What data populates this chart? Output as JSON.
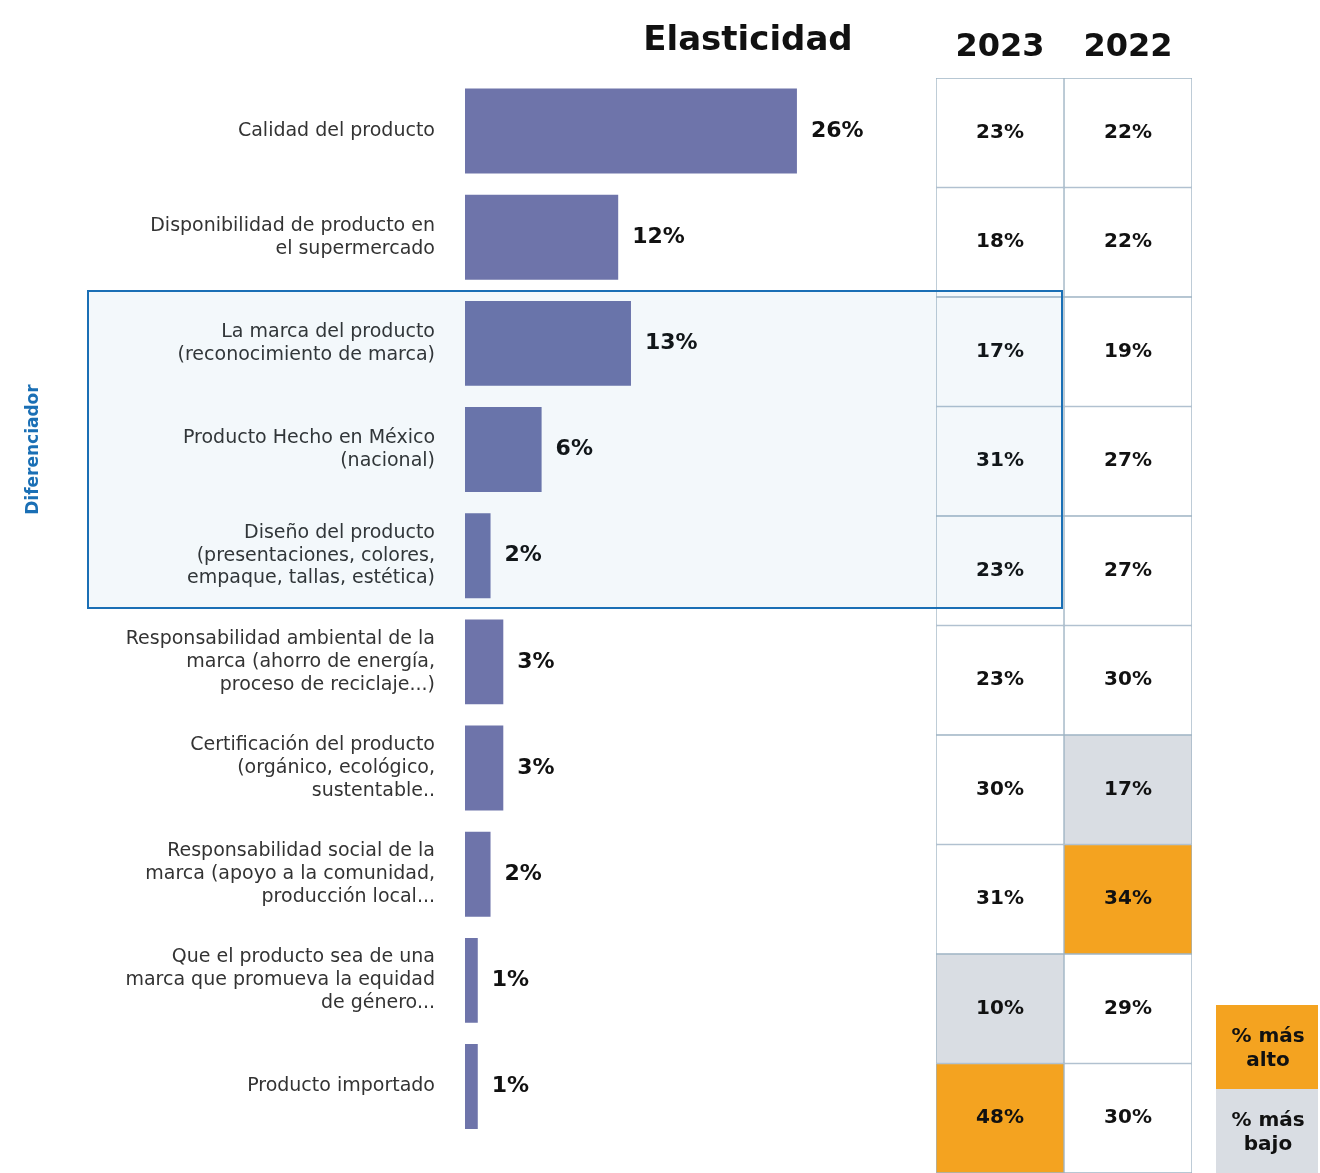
{
  "chart_data": [
    {
      "type": "bar",
      "orientation": "horizontal",
      "title": "Elasticidad",
      "categories": [
        "Calidad del producto",
        "Disponibilidad de producto en el supermercado",
        "La marca del producto (reconocimiento de marca)",
        "Producto Hecho en México (nacional)",
        "Diseño del producto (presentaciones, colores, empaque, tallas, estética)",
        "Responsabilidad ambiental de la marca (ahorro de energía, proceso de reciclaje...)",
        "Certificación del producto (orgánico, ecológico, sustentable..",
        "Responsabilidad social de la marca (apoyo a la comunidad, producción local...",
        "Que el producto sea de una marca que promueva la equidad de género...",
        "Producto importado"
      ],
      "values": [
        26,
        12,
        13,
        6,
        2,
        3,
        3,
        2,
        1,
        1
      ],
      "value_labels": [
        "26%",
        "12%",
        "13%",
        "6%",
        "2%",
        "3%",
        "3%",
        "2%",
        "1%",
        "1%"
      ],
      "color": "#6e74aa",
      "tick_labels": "y",
      "bands": [
        {
          "axis": "y",
          "from": "La marca del producto (reconocimiento de marca)",
          "to": "Diseño del producto (presentaciones, colores, empaque, tallas, estética)",
          "label": "Diferenciador",
          "color": "#1a6fb5"
        }
      ]
    },
    {
      "type": "heatmap",
      "categories": [
        "2023",
        "2022"
      ],
      "y_categories": [
        null,
        null,
        null,
        null,
        null,
        null,
        null,
        null,
        null,
        null
      ],
      "cells": [
        [
          23,
          22
        ],
        [
          18,
          22
        ],
        [
          17,
          19
        ],
        [
          31,
          27
        ],
        [
          23,
          27
        ],
        [
          23,
          30
        ],
        [
          30,
          17
        ],
        [
          31,
          34
        ],
        [
          10,
          29
        ],
        [
          48,
          30
        ]
      ],
      "cell_labels": [
        [
          "23%",
          "22%"
        ],
        [
          "18%",
          "22%"
        ],
        [
          "17%",
          "19%"
        ],
        [
          "31%",
          "27%"
        ],
        [
          "23%",
          "27%"
        ],
        [
          "23%",
          "30%"
        ],
        [
          "30%",
          "17%"
        ],
        [
          "31%",
          "34%"
        ],
        [
          "10%",
          "29%"
        ],
        [
          "48%",
          "30%"
        ]
      ],
      "tick_labels": "x",
      "annotations": [
        "% más alto",
        "% más bajo"
      ]
    }
  ]
}
